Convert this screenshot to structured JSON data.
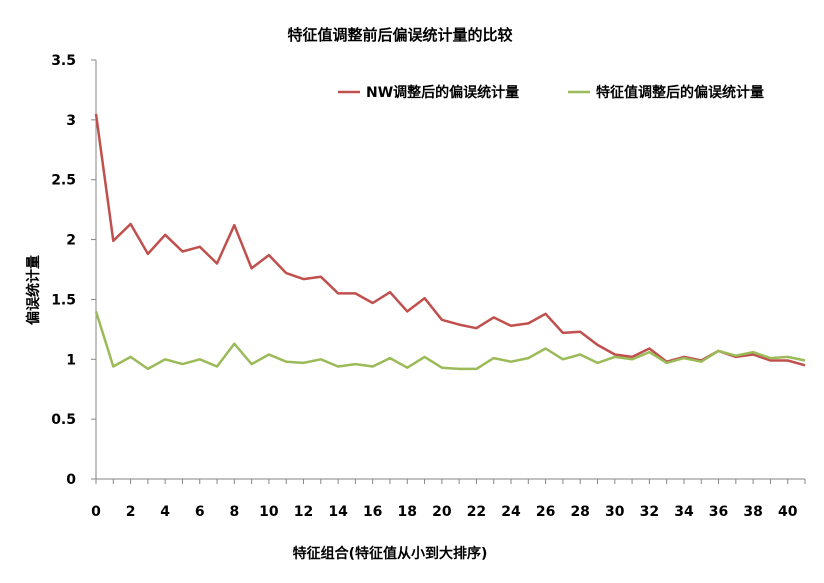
{
  "chart_data": {
    "type": "line",
    "title": "特征值调整前后偏误统计量的比较",
    "xlabel": "特征组合(特征值从小到大排序)",
    "ylabel": "偏误统计量",
    "xlim": [
      0,
      41
    ],
    "ylim": [
      0,
      3.5
    ],
    "x_ticks": [
      0,
      2,
      4,
      6,
      8,
      10,
      12,
      14,
      16,
      18,
      20,
      22,
      24,
      26,
      28,
      30,
      32,
      34,
      36,
      38,
      40
    ],
    "y_ticks": [
      "0",
      "0.5",
      "1",
      "1.5",
      "2",
      "2.5",
      "3",
      "3.5"
    ],
    "grid": false,
    "legend_position": "top-right",
    "x": [
      0,
      1,
      2,
      3,
      4,
      5,
      6,
      7,
      8,
      9,
      10,
      11,
      12,
      13,
      14,
      15,
      16,
      17,
      18,
      19,
      20,
      21,
      22,
      23,
      24,
      25,
      26,
      27,
      28,
      29,
      30,
      31,
      32,
      33,
      34,
      35,
      36,
      37,
      38,
      39,
      40,
      41
    ],
    "series": [
      {
        "name": "NW调整后的偏误统计量",
        "color": "#c0504d",
        "values": [
          3.05,
          1.99,
          2.13,
          1.88,
          2.04,
          1.9,
          1.94,
          1.8,
          2.12,
          1.76,
          1.87,
          1.72,
          1.67,
          1.69,
          1.55,
          1.55,
          1.47,
          1.56,
          1.4,
          1.51,
          1.33,
          1.29,
          1.26,
          1.35,
          1.28,
          1.3,
          1.38,
          1.22,
          1.23,
          1.12,
          1.04,
          1.02,
          1.09,
          0.98,
          1.02,
          0.99,
          1.07,
          1.02,
          1.04,
          0.99,
          0.99,
          0.95
        ]
      },
      {
        "name": "特征值调整后的偏误统计量",
        "color": "#9bbb59",
        "values": [
          1.4,
          0.94,
          1.02,
          0.92,
          1.0,
          0.96,
          1.0,
          0.94,
          1.13,
          0.96,
          1.04,
          0.98,
          0.97,
          1.0,
          0.94,
          0.96,
          0.94,
          1.01,
          0.93,
          1.02,
          0.93,
          0.92,
          0.92,
          1.01,
          0.98,
          1.01,
          1.09,
          1.0,
          1.04,
          0.97,
          1.02,
          1.0,
          1.06,
          0.97,
          1.01,
          0.98,
          1.07,
          1.03,
          1.06,
          1.01,
          1.02,
          0.99
        ]
      }
    ]
  }
}
